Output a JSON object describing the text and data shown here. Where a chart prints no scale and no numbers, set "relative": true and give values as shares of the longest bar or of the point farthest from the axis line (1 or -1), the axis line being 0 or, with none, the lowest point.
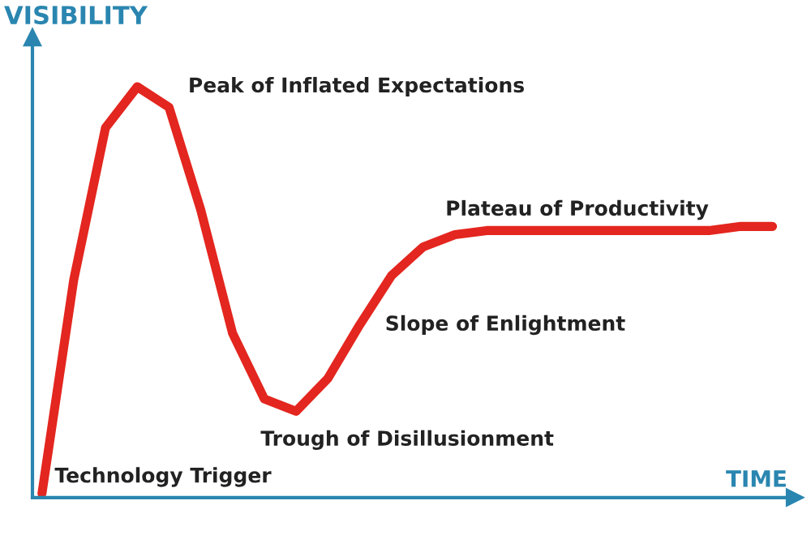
{
  "chart_data": {
    "type": "line",
    "relative": true,
    "xlabel": "TIME",
    "ylabel": "VISIBILITY",
    "categories": [
      null,
      null,
      null,
      null,
      null,
      null,
      null,
      null,
      null,
      null,
      null,
      null,
      null,
      null,
      null,
      null,
      null,
      null,
      null,
      null,
      null,
      null,
      null,
      null
    ],
    "series": [
      {
        "color": "#e3261f",
        "values": [
          0.01,
          0.53,
          0.9,
          1.0,
          0.95,
          0.7,
          0.4,
          0.24,
          0.21,
          0.29,
          0.42,
          0.54,
          0.61,
          0.64,
          0.65,
          0.65,
          0.65,
          0.65,
          0.65,
          0.65,
          0.65,
          0.65,
          0.66,
          0.66
        ]
      }
    ],
    "annotations": [
      "Peak of Inflated Expectations",
      "Plateau of Productivity",
      "Slope of Enlightment",
      "Trough of Disillusionment",
      "Technology Trigger"
    ],
    "grid": false,
    "legend": false
  }
}
